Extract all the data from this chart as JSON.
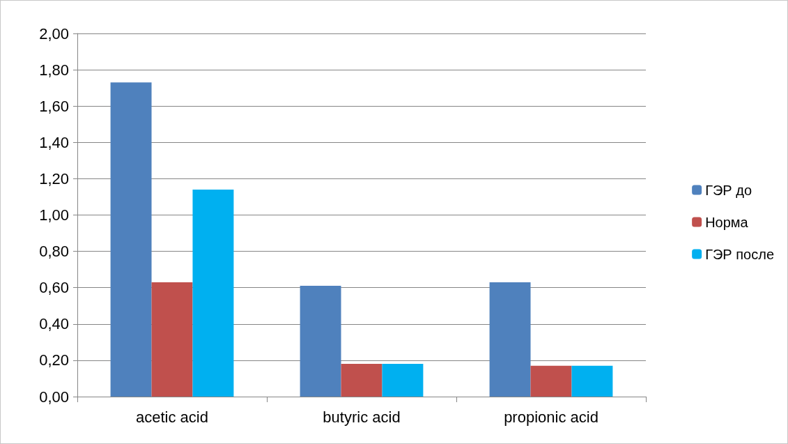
{
  "chart_data": {
    "type": "bar",
    "categories": [
      "acetic acid",
      "butyric acid",
      "propionic acid"
    ],
    "series": [
      {
        "name": "ГЭР до",
        "color": "#4f81bd",
        "values": [
          1.73,
          0.61,
          0.63
        ]
      },
      {
        "name": "Норма",
        "color": "#c0504d",
        "values": [
          0.63,
          0.18,
          0.17
        ]
      },
      {
        "name": "ГЭР после",
        "color": "#00b0f0",
        "values": [
          1.14,
          0.18,
          0.17
        ]
      }
    ],
    "ylim": [
      0,
      2
    ],
    "yticks": [
      {
        "value": 0,
        "label": "0,00"
      },
      {
        "value": 0.2,
        "label": "0,20"
      },
      {
        "value": 0.4,
        "label": "0,40"
      },
      {
        "value": 0.6,
        "label": "0,60"
      },
      {
        "value": 0.8,
        "label": "0,80"
      },
      {
        "value": 1,
        "label": "1,00"
      },
      {
        "value": 1.2,
        "label": "1,20"
      },
      {
        "value": 1.4,
        "label": "1,40"
      },
      {
        "value": 1.6,
        "label": "1,60"
      },
      {
        "value": 1.8,
        "label": "1,80"
      },
      {
        "value": 2,
        "label": "2,00"
      }
    ],
    "grid": "y",
    "legend": "right"
  }
}
